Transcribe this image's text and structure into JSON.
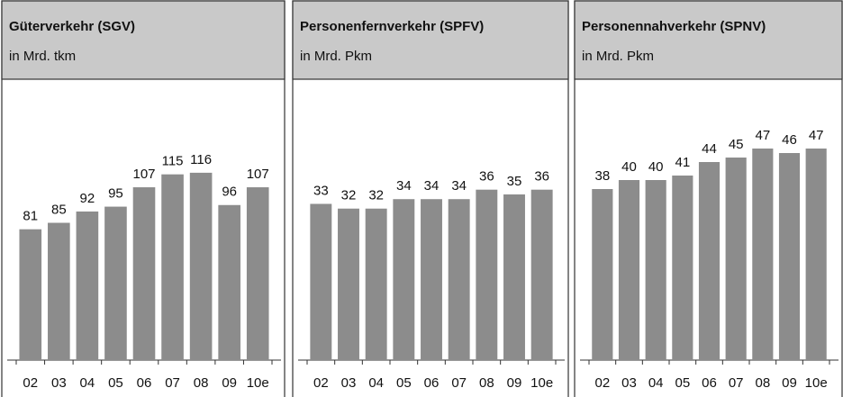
{
  "chart_data": [
    {
      "type": "bar",
      "title": "Güterverkehr (SGV)",
      "subtitle": "in Mrd. tkm",
      "categories": [
        "02",
        "03",
        "04",
        "05",
        "06",
        "07",
        "08",
        "09",
        "10e"
      ],
      "values": [
        81,
        85,
        92,
        95,
        107,
        115,
        116,
        96,
        107
      ],
      "color": "#8c8c8c",
      "ylim": [
        0,
        170
      ]
    },
    {
      "type": "bar",
      "title": "Personenfernverkehr (SPFV)",
      "subtitle": "in Mrd. Pkm",
      "categories": [
        "02",
        "03",
        "04",
        "05",
        "06",
        "07",
        "08",
        "09",
        "10e"
      ],
      "values": [
        33,
        32,
        32,
        34,
        34,
        34,
        36,
        35,
        36
      ],
      "color": "#8c8c8c",
      "ylim": [
        0,
        58
      ]
    },
    {
      "type": "bar",
      "title": "Personennahverkehr (SPNV)",
      "subtitle": "in Mrd. Pkm",
      "categories": [
        "02",
        "03",
        "04",
        "05",
        "06",
        "07",
        "08",
        "09",
        "10e"
      ],
      "values": [
        38,
        40,
        40,
        41,
        44,
        45,
        47,
        46,
        47
      ],
      "color": "#8c8c8c",
      "ylim": [
        0,
        61
      ]
    }
  ]
}
